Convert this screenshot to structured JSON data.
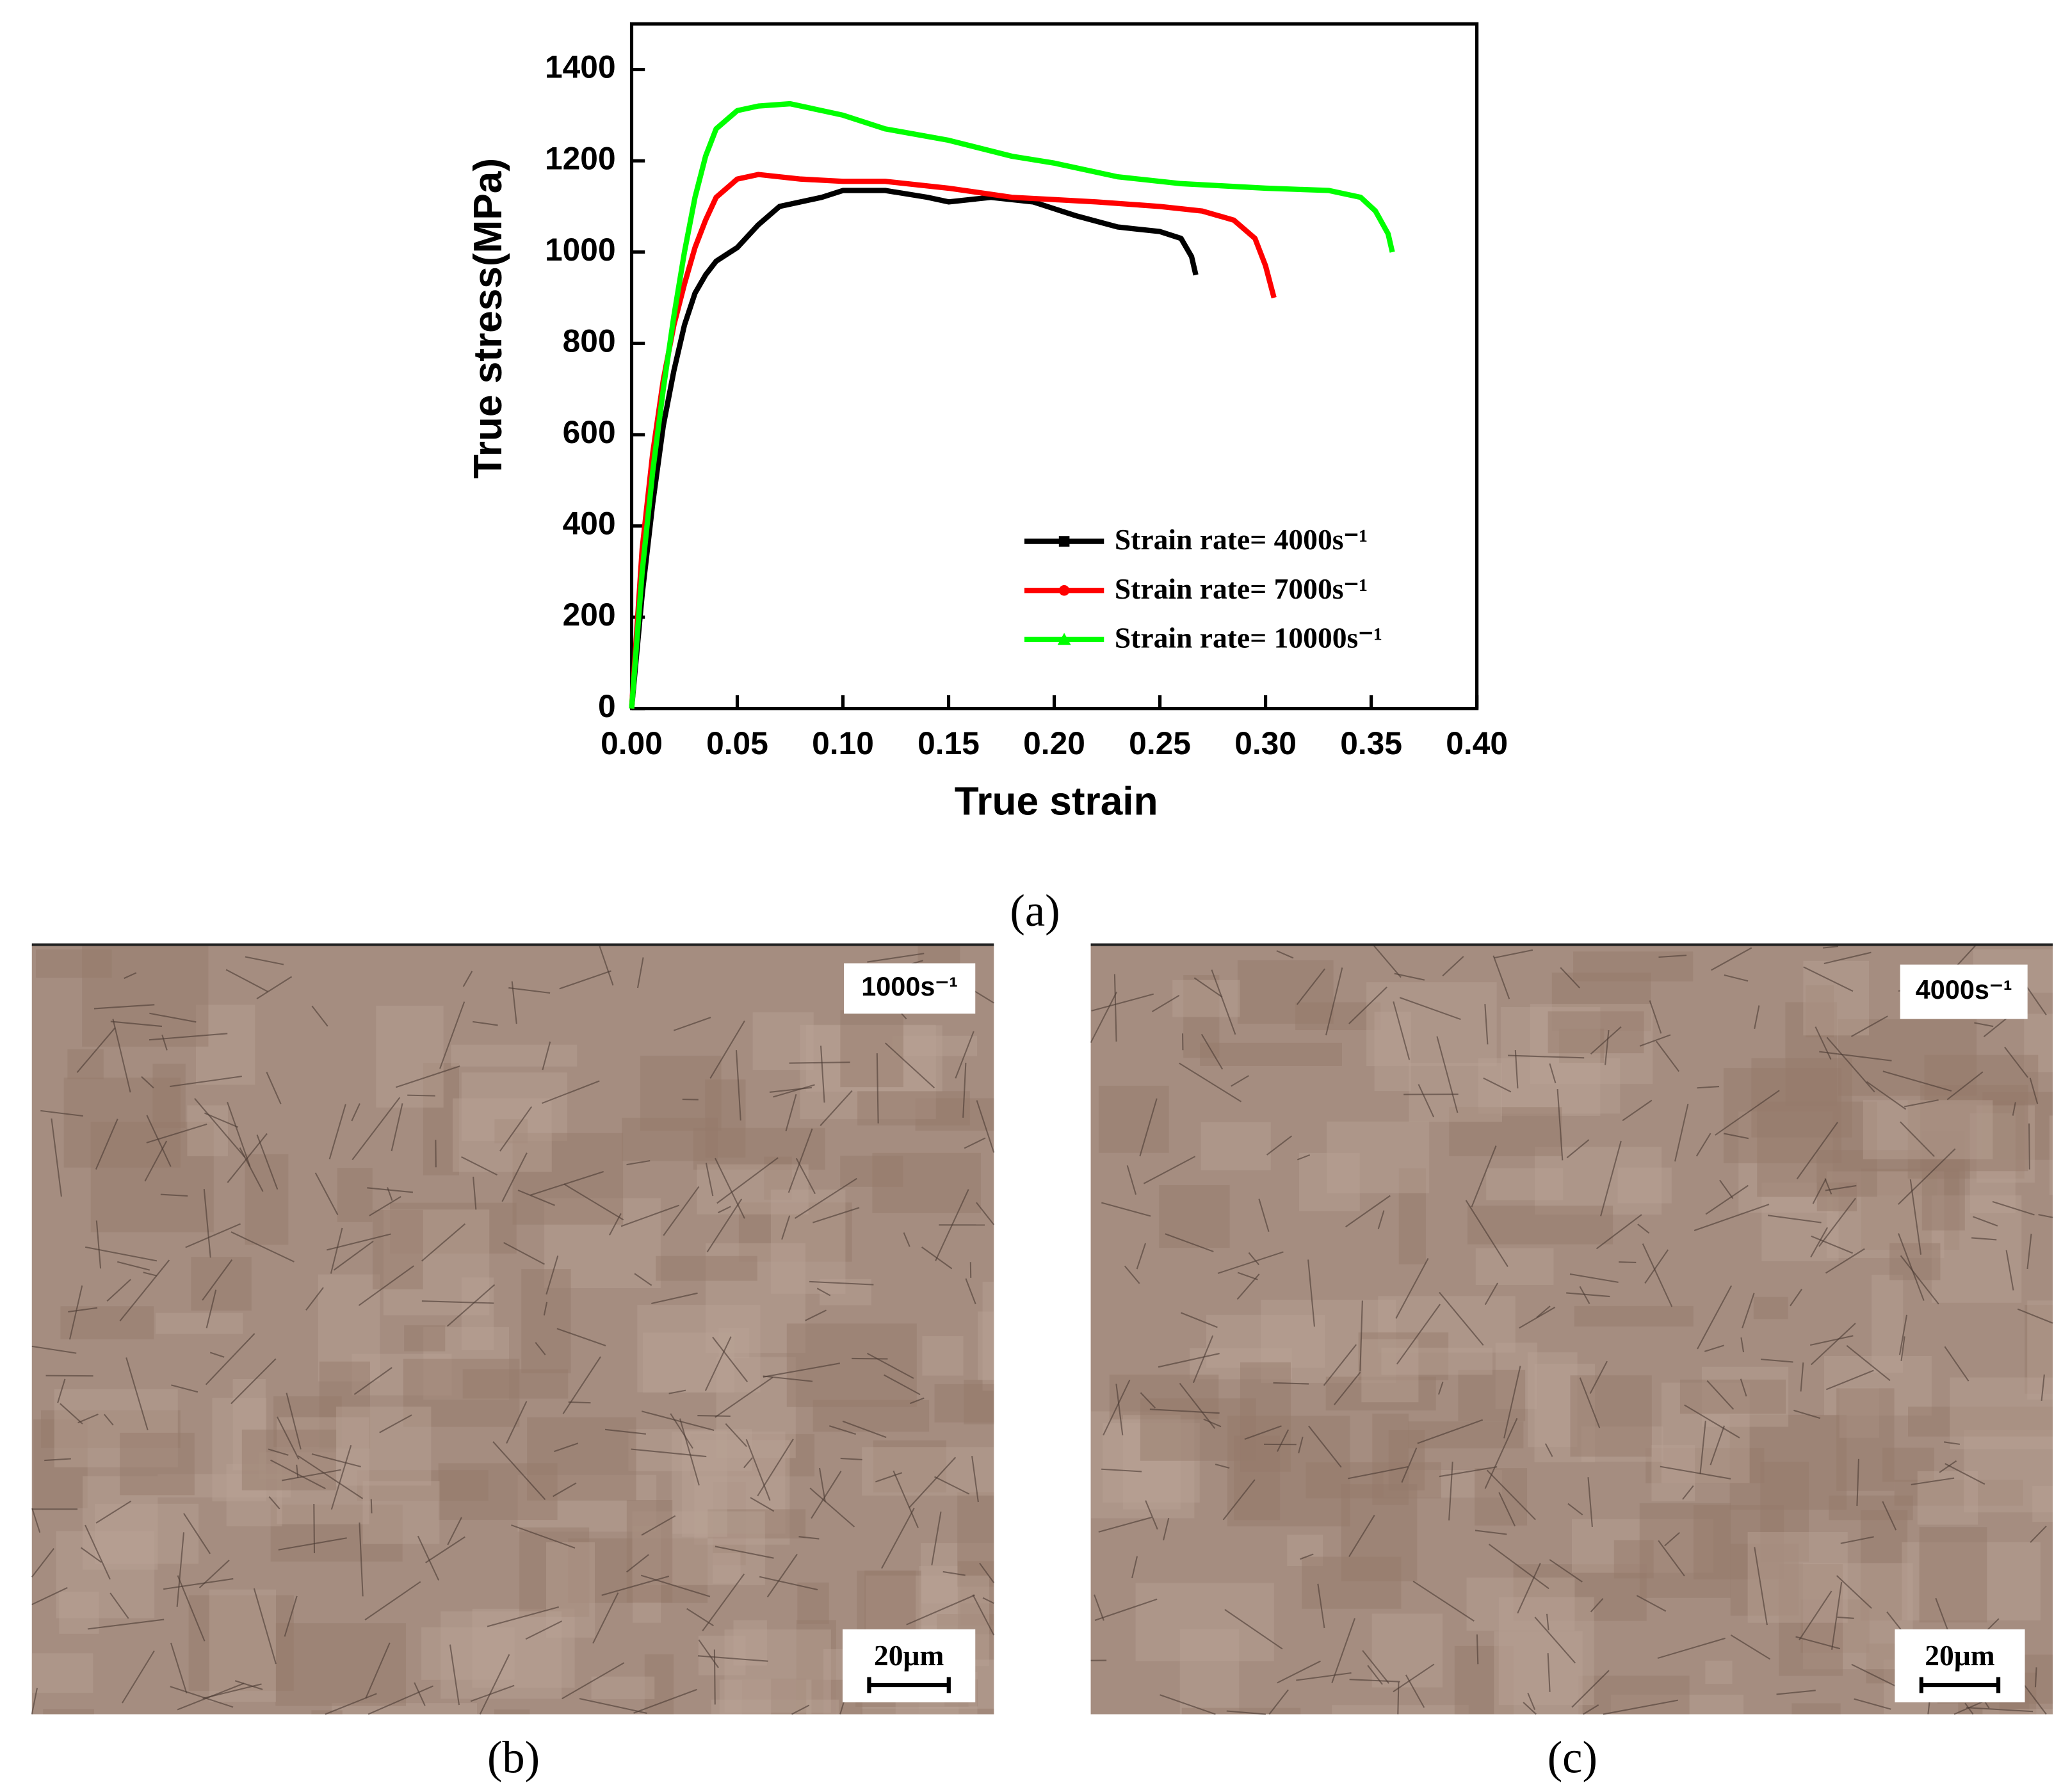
{
  "chart_data": {
    "type": "line",
    "x_label": "True strain",
    "y_label": "True stress(MPa)",
    "xlim": [
      0,
      0.4
    ],
    "ylim": [
      0,
      1500
    ],
    "xticks": [
      {
        "value": 0,
        "label": "0.00"
      },
      0.05,
      {
        "value": 0.1,
        "label": "0.10"
      },
      0.15,
      {
        "value": 0.2,
        "label": "0.20"
      },
      0.25,
      {
        "value": 0.3,
        "label": "0.30"
      },
      0.35,
      {
        "value": 0.4,
        "label": "0.40"
      }
    ],
    "yticks": [
      0,
      200,
      400,
      600,
      800,
      1000,
      1200,
      1400
    ],
    "legend": "lower right",
    "series": [
      {
        "name": "Strain rate=  4000s⁻¹",
        "color": "#000000",
        "marker": "square",
        "x": [
          0,
          0.005,
          0.01,
          0.015,
          0.02,
          0.025,
          0.03,
          0.035,
          0.04,
          0.05,
          0.06,
          0.07,
          0.08,
          0.09,
          0.1,
          0.12,
          0.14,
          0.15,
          0.17,
          0.19,
          0.21,
          0.23,
          0.25,
          0.26,
          0.265,
          0.267
        ],
        "values": [
          0,
          250,
          450,
          620,
          740,
          840,
          910,
          950,
          980,
          1010,
          1060,
          1100,
          1110,
          1120,
          1135,
          1135,
          1120,
          1110,
          1120,
          1110,
          1080,
          1055,
          1045,
          1030,
          990,
          950
        ]
      },
      {
        "name": "Strain rate=  7000s⁻¹",
        "color": "#ff0000",
        "marker": "circle",
        "x": [
          0,
          0.005,
          0.01,
          0.015,
          0.02,
          0.025,
          0.03,
          0.035,
          0.04,
          0.05,
          0.06,
          0.08,
          0.1,
          0.12,
          0.15,
          0.18,
          0.2,
          0.22,
          0.25,
          0.27,
          0.285,
          0.295,
          0.3,
          0.304
        ],
        "values": [
          0,
          350,
          560,
          720,
          840,
          930,
          1010,
          1070,
          1120,
          1160,
          1170,
          1160,
          1155,
          1155,
          1140,
          1120,
          1115,
          1110,
          1100,
          1090,
          1070,
          1030,
          970,
          900
        ]
      },
      {
        "name": "Strain rate= 10000s⁻¹",
        "color": "#00ff00",
        "marker": "triangle",
        "x": [
          0,
          0.005,
          0.01,
          0.015,
          0.02,
          0.025,
          0.03,
          0.035,
          0.04,
          0.05,
          0.06,
          0.075,
          0.09,
          0.1,
          0.12,
          0.15,
          0.18,
          0.2,
          0.23,
          0.26,
          0.3,
          0.33,
          0.345,
          0.352,
          0.358,
          0.36
        ],
        "values": [
          0,
          300,
          520,
          700,
          860,
          1000,
          1120,
          1210,
          1270,
          1310,
          1320,
          1325,
          1310,
          1300,
          1270,
          1245,
          1210,
          1195,
          1165,
          1150,
          1140,
          1135,
          1120,
          1090,
          1040,
          1000
        ]
      }
    ]
  },
  "panel_labels": [
    "(a)",
    "(b)",
    "(c)"
  ],
  "micrographs": [
    {
      "rate_label": "1000s⁻¹",
      "scale_label": "20μm"
    },
    {
      "rate_label": "4000s⁻¹",
      "scale_label": "20μm"
    }
  ]
}
